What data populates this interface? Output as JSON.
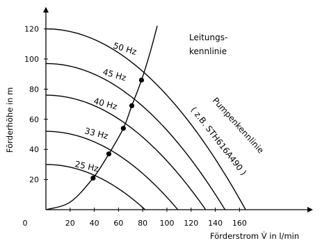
{
  "chart_data": {
    "type": "line",
    "xlabel": "Förderstrom V̇ in l/min",
    "ylabel": "Förderhöhe in m",
    "xlim": [
      0,
      165
    ],
    "ylim": [
      0,
      125
    ],
    "x_ticks": [
      "20",
      "40",
      "60",
      "80",
      "100",
      "120",
      "140",
      "160"
    ],
    "y_ticks": [
      "20",
      "40",
      "60",
      "80",
      "100",
      "120"
    ],
    "origin_label": "0",
    "grid": false,
    "pump_label": "Pumpenkennlinie",
    "pump_model": "( z.B. STH616A490 )",
    "system_label_line1": "Leitungs-",
    "system_label_line2": "kennlinie",
    "pump_curves": [
      {
        "name": "50 Hz",
        "head0": 120,
        "qmax": 165
      },
      {
        "name": "45 Hz",
        "head0": 97,
        "qmax": 148
      },
      {
        "name": "40 Hz",
        "head0": 76,
        "qmax": 132
      },
      {
        "name": "33 Hz",
        "head0": 52,
        "qmax": 109
      },
      {
        "name": "25 Hz",
        "head0": 30,
        "qmax": 82
      }
    ],
    "operating_points": [
      {
        "x": 39,
        "y": 21
      },
      {
        "x": 52,
        "y": 37
      },
      {
        "x": 64,
        "y": 54
      },
      {
        "x": 71,
        "y": 69
      },
      {
        "x": 79,
        "y": 86
      }
    ],
    "system_curve": [
      {
        "x": 0,
        "y": 0
      },
      {
        "x": 20,
        "y": 5
      },
      {
        "x": 39,
        "y": 21
      },
      {
        "x": 52,
        "y": 37
      },
      {
        "x": 64,
        "y": 54
      },
      {
        "x": 71,
        "y": 69
      },
      {
        "x": 79,
        "y": 86
      },
      {
        "x": 86,
        "y": 104
      },
      {
        "x": 92,
        "y": 122
      }
    ]
  }
}
